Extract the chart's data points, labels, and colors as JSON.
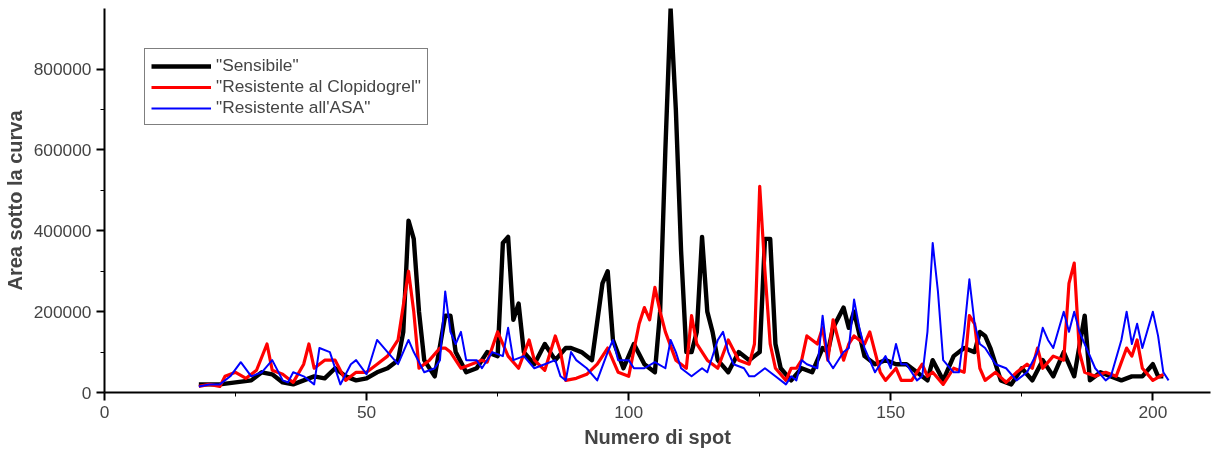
{
  "chart_data": {
    "type": "line",
    "xlabel": "Numero di spot",
    "ylabel": "Area sotto la curva",
    "xlim": [
      0,
      211
    ],
    "ylim": [
      0,
      950000
    ],
    "xticks": [
      0,
      50,
      100,
      150,
      200
    ],
    "yticks": [
      0,
      200000,
      400000,
      600000,
      800000
    ],
    "grid": false,
    "legend": "top left",
    "marker": "none",
    "line_style": "solid",
    "series": [
      {
        "name": "\"Sensibile\"",
        "color": "#000000",
        "x": [
          18,
          20,
          22,
          25,
          28,
          30,
          32,
          34,
          36,
          38,
          40,
          42,
          44,
          46,
          48,
          50,
          52,
          54,
          56,
          57,
          58,
          59,
          60,
          61,
          63,
          65,
          66,
          67,
          69,
          71,
          73,
          75,
          76,
          77,
          78,
          79,
          80,
          82,
          84,
          86,
          88,
          89,
          91,
          93,
          95,
          96,
          97,
          99,
          101,
          103,
          105,
          106,
          107,
          108,
          109,
          110,
          111,
          112,
          113,
          114,
          115,
          116,
          117,
          119,
          121,
          123,
          124,
          125,
          126,
          127,
          128,
          129,
          131,
          133,
          135,
          137,
          138,
          139,
          141,
          142,
          143,
          145,
          147,
          149,
          151,
          153,
          155,
          157,
          158,
          160,
          162,
          164,
          166,
          167,
          168,
          169,
          171,
          173,
          175,
          177,
          179,
          181,
          183,
          185,
          187,
          188,
          190,
          192,
          194,
          196,
          198,
          200,
          201,
          202
        ],
        "values": [
          20000,
          20000,
          20000,
          25000,
          30000,
          50000,
          45000,
          25000,
          20000,
          30000,
          40000,
          35000,
          60000,
          40000,
          30000,
          35000,
          50000,
          60000,
          80000,
          150000,
          425000,
          380000,
          200000,
          80000,
          40000,
          190000,
          190000,
          100000,
          50000,
          60000,
          100000,
          90000,
          370000,
          385000,
          180000,
          220000,
          100000,
          70000,
          120000,
          80000,
          110000,
          110000,
          100000,
          80000,
          270000,
          300000,
          130000,
          60000,
          120000,
          70000,
          50000,
          200000,
          600000,
          950000,
          700000,
          350000,
          100000,
          100000,
          150000,
          385000,
          200000,
          150000,
          80000,
          50000,
          100000,
          80000,
          90000,
          100000,
          380000,
          380000,
          120000,
          60000,
          30000,
          60000,
          50000,
          110000,
          100000,
          160000,
          210000,
          160000,
          200000,
          90000,
          70000,
          80000,
          70000,
          70000,
          50000,
          30000,
          80000,
          30000,
          90000,
          110000,
          100000,
          150000,
          140000,
          110000,
          30000,
          20000,
          60000,
          30000,
          80000,
          40000,
          100000,
          40000,
          190000,
          30000,
          50000,
          40000,
          30000,
          40000,
          40000,
          70000,
          40000,
          40000
        ]
      },
      {
        "name": "\"Resistente al Clopidogrel\"",
        "color": "#ff0000",
        "x": [
          18,
          20,
          22,
          23,
          25,
          27,
          29,
          31,
          32,
          34,
          36,
          38,
          39,
          40,
          42,
          44,
          46,
          48,
          50,
          52,
          54,
          56,
          58,
          59,
          60,
          62,
          64,
          65,
          66,
          68,
          70,
          72,
          73,
          75,
          77,
          79,
          81,
          82,
          84,
          86,
          87,
          88,
          90,
          92,
          94,
          96,
          98,
          100,
          102,
          103,
          104,
          105,
          106,
          107,
          109,
          111,
          112,
          113,
          115,
          117,
          119,
          121,
          123,
          124,
          125,
          126,
          127,
          128,
          130,
          131,
          132,
          133,
          134,
          136,
          137,
          138,
          139,
          141,
          142,
          143,
          145,
          146,
          147,
          148,
          149,
          151,
          152,
          154,
          156,
          157,
          158,
          160,
          162,
          164,
          165,
          166,
          167,
          168,
          170,
          172,
          174,
          176,
          177,
          178,
          179,
          181,
          183,
          184,
          185,
          186,
          187,
          189,
          191,
          193,
          195,
          196,
          197,
          198,
          200,
          202
        ],
        "values": [
          15000,
          20000,
          15000,
          40000,
          50000,
          35000,
          55000,
          120000,
          55000,
          45000,
          25000,
          70000,
          120000,
          60000,
          80000,
          80000,
          30000,
          50000,
          50000,
          70000,
          90000,
          130000,
          300000,
          200000,
          60000,
          80000,
          110000,
          110000,
          100000,
          60000,
          70000,
          80000,
          75000,
          150000,
          90000,
          60000,
          130000,
          80000,
          55000,
          140000,
          100000,
          30000,
          35000,
          45000,
          70000,
          110000,
          50000,
          40000,
          170000,
          210000,
          180000,
          260000,
          200000,
          150000,
          80000,
          60000,
          190000,
          120000,
          80000,
          60000,
          130000,
          80000,
          70000,
          120000,
          510000,
          300000,
          120000,
          60000,
          30000,
          60000,
          60000,
          80000,
          140000,
          120000,
          160000,
          80000,
          180000,
          80000,
          120000,
          140000,
          120000,
          150000,
          100000,
          50000,
          30000,
          60000,
          30000,
          30000,
          70000,
          40000,
          50000,
          20000,
          60000,
          50000,
          190000,
          170000,
          60000,
          30000,
          50000,
          25000,
          50000,
          70000,
          60000,
          110000,
          60000,
          90000,
          80000,
          270000,
          320000,
          100000,
          50000,
          40000,
          50000,
          40000,
          110000,
          90000,
          130000,
          60000,
          30000,
          45000
        ]
      },
      {
        "name": "\"Resistente all'ASA\"",
        "color": "#0000ff",
        "x": [
          18,
          20,
          22,
          24,
          26,
          28,
          30,
          32,
          34,
          35,
          36,
          38,
          40,
          41,
          43,
          45,
          47,
          48,
          50,
          52,
          54,
          56,
          58,
          59,
          61,
          63,
          64,
          65,
          66,
          67,
          68,
          69,
          71,
          72,
          74,
          76,
          77,
          78,
          80,
          82,
          84,
          86,
          87,
          88,
          89,
          90,
          92,
          94,
          96,
          97,
          98,
          100,
          101,
          103,
          105,
          107,
          108,
          109,
          110,
          112,
          114,
          115,
          117,
          118,
          119,
          120,
          122,
          123,
          124,
          126,
          128,
          130,
          131,
          132,
          133,
          134,
          136,
          137,
          138,
          139,
          141,
          142,
          143,
          144,
          145,
          147,
          149,
          150,
          151,
          152,
          153,
          155,
          156,
          157,
          158,
          159,
          160,
          162,
          163,
          164,
          165,
          166,
          167,
          168,
          170,
          172,
          174,
          176,
          178,
          179,
          180,
          181,
          183,
          184,
          185,
          186,
          187,
          189,
          191,
          192,
          194,
          195,
          196,
          197,
          198,
          200,
          201,
          202,
          203
        ],
        "values": [
          15000,
          20000,
          20000,
          40000,
          75000,
          40000,
          50000,
          80000,
          30000,
          25000,
          50000,
          40000,
          20000,
          110000,
          100000,
          20000,
          70000,
          80000,
          45000,
          130000,
          100000,
          70000,
          130000,
          100000,
          50000,
          60000,
          80000,
          250000,
          150000,
          120000,
          150000,
          80000,
          80000,
          60000,
          100000,
          90000,
          160000,
          80000,
          90000,
          60000,
          70000,
          80000,
          40000,
          30000,
          100000,
          80000,
          60000,
          30000,
          100000,
          130000,
          80000,
          80000,
          60000,
          60000,
          75000,
          60000,
          130000,
          100000,
          60000,
          40000,
          60000,
          50000,
          130000,
          150000,
          100000,
          70000,
          60000,
          40000,
          40000,
          60000,
          40000,
          20000,
          40000,
          30000,
          80000,
          70000,
          60000,
          190000,
          80000,
          60000,
          100000,
          110000,
          230000,
          160000,
          110000,
          50000,
          90000,
          60000,
          120000,
          70000,
          70000,
          30000,
          40000,
          150000,
          370000,
          250000,
          80000,
          50000,
          50000,
          150000,
          280000,
          170000,
          120000,
          110000,
          70000,
          60000,
          30000,
          50000,
          100000,
          160000,
          130000,
          110000,
          200000,
          150000,
          200000,
          150000,
          120000,
          60000,
          30000,
          40000,
          130000,
          200000,
          120000,
          170000,
          110000,
          200000,
          140000,
          50000,
          30000
        ]
      }
    ]
  }
}
